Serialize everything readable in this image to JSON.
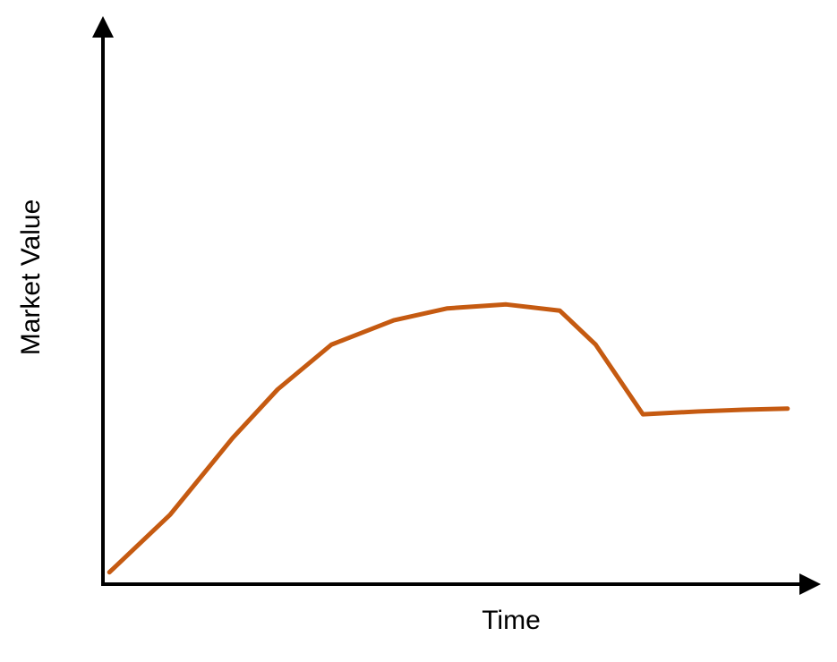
{
  "chart_data": {
    "type": "line",
    "x_label": "Time",
    "y_label": "Market Value",
    "xlim": [
      0,
      100
    ],
    "ylim": [
      0,
      100
    ],
    "x": [
      0.9,
      9.4,
      18.1,
      24.4,
      31.9,
      40.6,
      48.1,
      56.3,
      63.8,
      68.8,
      75.4,
      83.1,
      89.4,
      95.6
    ],
    "series": [
      {
        "color": "#c55a11",
        "values": [
          2.1,
          12.3,
          25.8,
          34.4,
          42.3,
          46.6,
          48.7,
          49.4,
          48.3,
          42.3,
          30.0,
          30.5,
          30.8,
          31.0
        ]
      }
    ]
  }
}
